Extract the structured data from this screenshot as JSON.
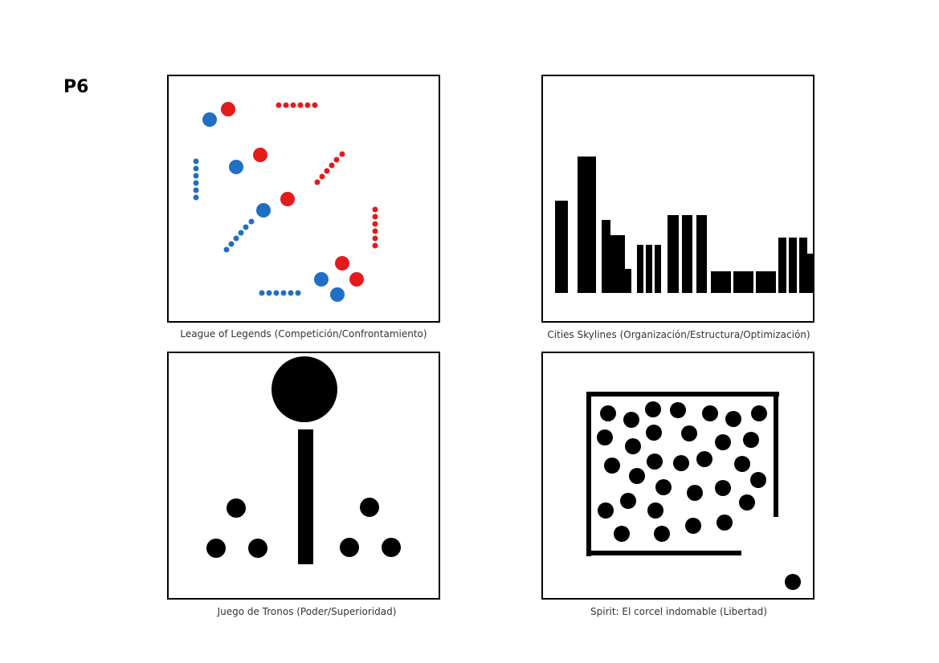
{
  "page_label": "P6",
  "colors": {
    "blue": "#1f6fc5",
    "red": "#e31b1b",
    "black": "#000000"
  },
  "panels": [
    {
      "caption": "League of Legends (Competición/Confrontamiento)"
    },
    {
      "caption": "Cities Skylines (Organización/Estructura/Optimización)"
    },
    {
      "caption": "Juego de Tronos (Poder/Superioridad)"
    },
    {
      "caption": "Spirit: El corcel indomable (Libertad)"
    }
  ]
}
